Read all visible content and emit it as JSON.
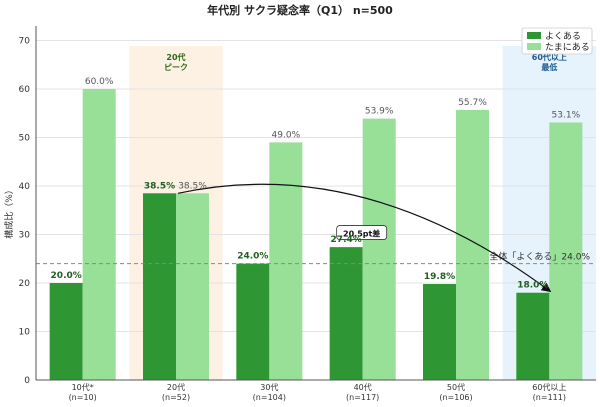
{
  "chart_data": {
    "type": "bar",
    "title": "年代別 サクラ疑念率（Q1） n=500",
    "ylabel": "構成比（%）",
    "ylim": [
      0,
      73
    ],
    "yticks": [
      0,
      10,
      20,
      30,
      40,
      50,
      60,
      70
    ],
    "grid": true,
    "legend_position": "top-right",
    "categories": [
      [
        "10代*",
        "(n=10)"
      ],
      [
        "20代",
        "(n=52)"
      ],
      [
        "30代",
        "(n=104)"
      ],
      [
        "40代",
        "(n=117)"
      ],
      [
        "50代",
        "(n=106)"
      ],
      [
        "60代以上",
        "(n=111)"
      ]
    ],
    "series": [
      {
        "name": "よくある",
        "color": "#2e9632",
        "values": [
          20.0,
          38.5,
          24.0,
          27.4,
          19.8,
          18.0
        ]
      },
      {
        "name": "たまにある",
        "color": "#98df98",
        "values": [
          60.0,
          38.5,
          49.0,
          53.9,
          55.7,
          53.1
        ]
      }
    ],
    "reference_line": {
      "value": 24.0,
      "label": "全体「よくある」24.0%"
    },
    "highlights": [
      {
        "category_index": 1,
        "label": [
          "20代",
          "ピーク"
        ],
        "fill": "#fdf1e4",
        "text_color": "#2d6b1a"
      },
      {
        "category_index": 5,
        "label": [
          "60代以上",
          "最低"
        ],
        "fill": "#e6f3fc",
        "text_color": "#1f5a8f"
      }
    ],
    "annotation": {
      "from_category_index": 1,
      "to_category_index": 5,
      "label": "20.5pt差"
    }
  }
}
